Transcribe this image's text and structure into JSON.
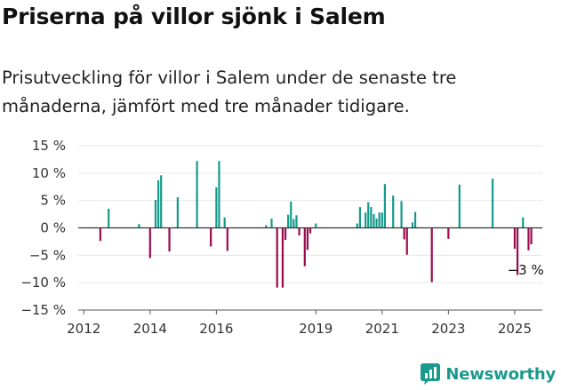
{
  "title": "Priserna på villor sjönk i Salem",
  "subtitle": "Prisutveckling för villor i Salem under de senaste tre månaderna, jämfört med tre månader tidigare.",
  "brand": {
    "name": "Newsworthy",
    "icon": "newsworthy-logo-icon"
  },
  "colors": {
    "positive": "#159a8c",
    "negative": "#9b0b4e",
    "grid": "#e6e6e6",
    "zero": "#333333"
  },
  "chart_data": {
    "type": "bar",
    "y_unit": "%",
    "ylim": [
      -15,
      15
    ],
    "y_ticks": [
      15,
      10,
      5,
      0,
      -5,
      -10,
      -15
    ],
    "y_tick_labels": [
      "15 %",
      "10 %",
      "5 %",
      "0 %",
      "−5 %",
      "−10 %",
      "−15 %"
    ],
    "xlim": [
      "2011-11",
      "2025-11"
    ],
    "x_ticks": [
      "2012-01",
      "2014-01",
      "2016-01",
      "2019-01",
      "2021-01",
      "2023-01",
      "2025-01"
    ],
    "x_tick_labels": [
      "2012",
      "2014",
      "2016",
      "2019",
      "2021",
      "2023",
      "2025"
    ],
    "grid": true,
    "annotation": {
      "x": "2025-03",
      "y": -3,
      "label": "−3 %"
    },
    "points": [
      {
        "x": "2012-07",
        "y": -2.4
      },
      {
        "x": "2012-10",
        "y": 3.5
      },
      {
        "x": "2013-09",
        "y": 0.7
      },
      {
        "x": "2014-01",
        "y": -5.5
      },
      {
        "x": "2014-03",
        "y": 5.1
      },
      {
        "x": "2014-04",
        "y": 8.7
      },
      {
        "x": "2014-05",
        "y": 9.6
      },
      {
        "x": "2014-08",
        "y": -4.3
      },
      {
        "x": "2014-11",
        "y": 5.6
      },
      {
        "x": "2015-06",
        "y": 12.2
      },
      {
        "x": "2015-11",
        "y": -3.4
      },
      {
        "x": "2016-01",
        "y": 7.4
      },
      {
        "x": "2016-02",
        "y": 12.2
      },
      {
        "x": "2016-04",
        "y": 1.9
      },
      {
        "x": "2016-05",
        "y": -4.2
      },
      {
        "x": "2017-07",
        "y": 0.5
      },
      {
        "x": "2017-09",
        "y": 1.7
      },
      {
        "x": "2017-11",
        "y": -10.9
      },
      {
        "x": "2018-01",
        "y": -10.9
      },
      {
        "x": "2018-02",
        "y": -2.2
      },
      {
        "x": "2018-03",
        "y": 2.4
      },
      {
        "x": "2018-04",
        "y": 4.8
      },
      {
        "x": "2018-05",
        "y": 1.6
      },
      {
        "x": "2018-06",
        "y": 2.3
      },
      {
        "x": "2018-07",
        "y": -1.4
      },
      {
        "x": "2018-09",
        "y": -7.0
      },
      {
        "x": "2018-10",
        "y": -4.0
      },
      {
        "x": "2018-11",
        "y": -1.0
      },
      {
        "x": "2019-01",
        "y": 0.8
      },
      {
        "x": "2020-04",
        "y": 0.8
      },
      {
        "x": "2020-05",
        "y": 3.8
      },
      {
        "x": "2020-07",
        "y": 2.8
      },
      {
        "x": "2020-08",
        "y": 4.7
      },
      {
        "x": "2020-09",
        "y": 3.8
      },
      {
        "x": "2020-10",
        "y": 2.5
      },
      {
        "x": "2020-11",
        "y": 1.7
      },
      {
        "x": "2020-12",
        "y": 2.8
      },
      {
        "x": "2021-01",
        "y": 2.8
      },
      {
        "x": "2021-02",
        "y": 8.0
      },
      {
        "x": "2021-05",
        "y": 5.9
      },
      {
        "x": "2021-08",
        "y": 4.9
      },
      {
        "x": "2021-09",
        "y": -2.1
      },
      {
        "x": "2021-10",
        "y": -4.9
      },
      {
        "x": "2021-12",
        "y": 1.0
      },
      {
        "x": "2022-01",
        "y": 2.9
      },
      {
        "x": "2022-07",
        "y": -9.9
      },
      {
        "x": "2023-01",
        "y": -2.0
      },
      {
        "x": "2023-05",
        "y": 7.9
      },
      {
        "x": "2024-05",
        "y": 9.0
      },
      {
        "x": "2025-01",
        "y": -3.8
      },
      {
        "x": "2025-02",
        "y": -8.6
      },
      {
        "x": "2025-04",
        "y": 1.9
      },
      {
        "x": "2025-06",
        "y": -4.1
      },
      {
        "x": "2025-07",
        "y": -3.0
      }
    ]
  }
}
